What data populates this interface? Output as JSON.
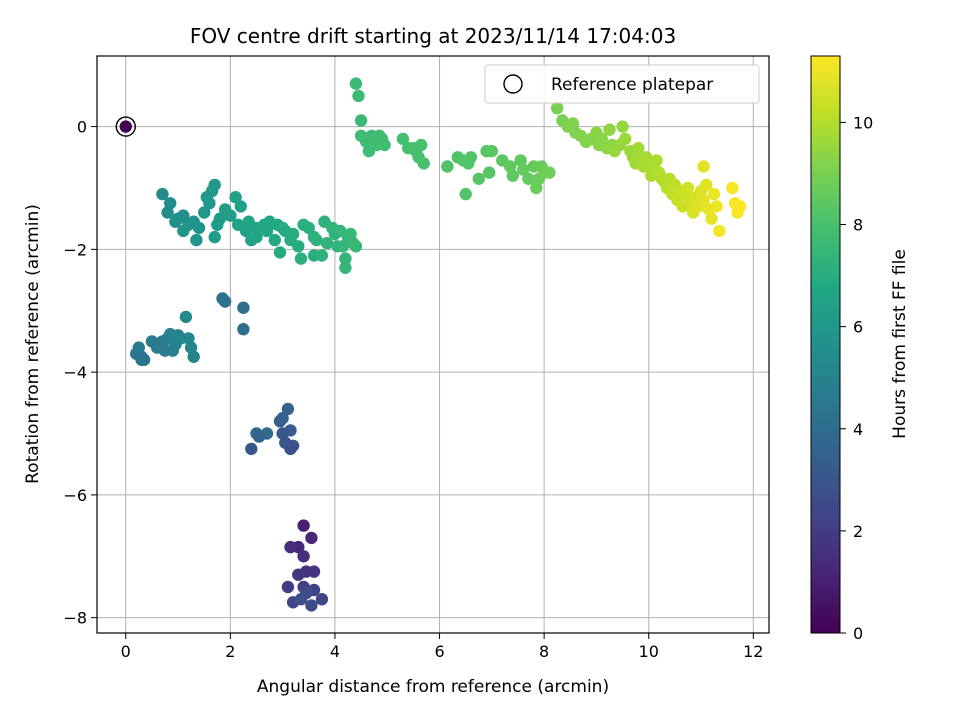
{
  "chart_data": {
    "type": "scatter",
    "title": "FOV centre drift starting at 2023/11/14 17:04:03",
    "xlabel": "Angular distance from reference (arcmin)",
    "ylabel": "Rotation from reference (arcmin)",
    "xlim": [
      -0.55,
      12.3
    ],
    "ylim": [
      -8.25,
      1.15
    ],
    "xticks": [
      0,
      2,
      4,
      6,
      8,
      10,
      12
    ],
    "yticks": [
      -8,
      -6,
      -4,
      -2,
      0
    ],
    "grid": true,
    "legend": {
      "position": "top-right",
      "entries": [
        "Reference platepar"
      ]
    },
    "colorbar": {
      "label": "Hours from first FF file",
      "range": [
        0,
        11.3
      ],
      "ticks": [
        0,
        2,
        4,
        6,
        8,
        10
      ],
      "colormap": "viridis"
    },
    "reference": {
      "x": 0,
      "y": 0,
      "h": 0
    },
    "series": [
      {
        "points": [
          [
            3.4,
            -6.5,
            1.0
          ],
          [
            3.3,
            -6.85,
            1.2
          ],
          [
            3.55,
            -6.7,
            1.3
          ],
          [
            3.15,
            -6.85,
            1.4
          ],
          [
            3.4,
            -7.0,
            1.5
          ],
          [
            3.45,
            -7.25,
            1.6
          ],
          [
            3.6,
            -7.25,
            1.7
          ],
          [
            3.3,
            -7.3,
            1.8
          ],
          [
            3.1,
            -7.5,
            2.0
          ],
          [
            3.4,
            -7.5,
            2.1
          ],
          [
            3.6,
            -7.55,
            2.2
          ],
          [
            3.75,
            -7.7,
            2.3
          ],
          [
            3.2,
            -7.75,
            2.4
          ],
          [
            3.55,
            -7.8,
            2.5
          ],
          [
            3.45,
            -7.6,
            2.6
          ],
          [
            3.35,
            -7.7,
            2.7
          ]
        ]
      },
      {
        "points": [
          [
            3.1,
            -4.6,
            3.6
          ],
          [
            3.0,
            -4.75,
            3.5
          ],
          [
            2.95,
            -4.8,
            3.4
          ],
          [
            3.15,
            -4.95,
            3.3
          ],
          [
            3.0,
            -5.0,
            3.2
          ],
          [
            2.7,
            -5.0,
            3.9
          ],
          [
            2.5,
            -5.0,
            3.8
          ],
          [
            2.55,
            -5.05,
            3.7
          ],
          [
            2.4,
            -5.25,
            3.1
          ],
          [
            3.05,
            -5.15,
            3.0
          ],
          [
            3.15,
            -5.25,
            2.9
          ],
          [
            3.2,
            -5.2,
            2.8
          ]
        ]
      },
      {
        "points": [
          [
            0.2,
            -3.7,
            4.3
          ],
          [
            0.3,
            -3.75,
            4.4
          ],
          [
            0.35,
            -3.8,
            4.5
          ],
          [
            0.25,
            -3.6,
            4.6
          ],
          [
            0.5,
            -3.5,
            4.7
          ],
          [
            0.7,
            -3.55,
            4.8
          ],
          [
            0.8,
            -3.45,
            4.9
          ],
          [
            0.85,
            -3.38,
            5.0
          ],
          [
            0.95,
            -3.55,
            5.1
          ],
          [
            1.05,
            -3.45,
            5.2
          ],
          [
            1.15,
            -3.1,
            5.3
          ],
          [
            1.2,
            -3.45,
            5.2
          ],
          [
            1.25,
            -3.6,
            5.1
          ],
          [
            1.3,
            -3.75,
            5.0
          ],
          [
            0.9,
            -3.65,
            4.9
          ],
          [
            0.75,
            -3.65,
            4.8
          ],
          [
            0.6,
            -3.6,
            4.7
          ],
          [
            0.7,
            -3.5,
            4.7
          ],
          [
            1.0,
            -3.4,
            5.0
          ],
          [
            0.3,
            -3.8,
            4.4
          ]
        ]
      },
      {
        "points": [
          [
            1.85,
            -2.8,
            4.2
          ],
          [
            1.9,
            -2.85,
            4.2
          ],
          [
            2.25,
            -2.95,
            4.1
          ],
          [
            2.25,
            -3.3,
            4.1
          ]
        ]
      },
      {
        "points": [
          [
            0.7,
            -1.1,
            5.4
          ],
          [
            0.85,
            -1.25,
            5.5
          ],
          [
            0.8,
            -1.4,
            5.5
          ],
          [
            1.0,
            -1.5,
            5.6
          ],
          [
            1.1,
            -1.45,
            5.6
          ],
          [
            0.95,
            -1.55,
            5.6
          ],
          [
            1.2,
            -1.6,
            5.7
          ],
          [
            1.3,
            -1.55,
            5.7
          ],
          [
            1.1,
            -1.7,
            5.8
          ],
          [
            1.4,
            -1.65,
            5.8
          ],
          [
            1.35,
            -1.85,
            5.8
          ],
          [
            1.5,
            -1.4,
            5.9
          ],
          [
            1.6,
            -1.25,
            5.9
          ],
          [
            1.55,
            -1.15,
            6.0
          ],
          [
            1.7,
            -0.95,
            6.0
          ],
          [
            1.65,
            -1.05,
            6.1
          ],
          [
            1.8,
            -1.5,
            6.1
          ],
          [
            1.75,
            -1.6,
            6.2
          ],
          [
            1.7,
            -1.8,
            6.2
          ],
          [
            1.9,
            -1.35,
            6.3
          ],
          [
            2.0,
            -1.45,
            6.3
          ],
          [
            2.1,
            -1.15,
            6.4
          ],
          [
            2.2,
            -1.3,
            6.4
          ],
          [
            2.15,
            -1.6,
            6.5
          ],
          [
            2.3,
            -1.7,
            6.5
          ],
          [
            2.4,
            -1.85,
            6.5
          ],
          [
            2.35,
            -1.55,
            6.6
          ],
          [
            2.5,
            -1.65,
            6.6
          ],
          [
            2.65,
            -1.6,
            6.7
          ],
          [
            2.75,
            -1.55,
            6.7
          ],
          [
            2.9,
            -1.6,
            6.8
          ],
          [
            2.85,
            -1.85,
            6.8
          ],
          [
            3.0,
            -1.65,
            6.9
          ],
          [
            3.05,
            -1.7,
            6.9
          ],
          [
            2.95,
            -2.05,
            6.9
          ],
          [
            3.15,
            -1.85,
            7.0
          ],
          [
            3.2,
            -1.75,
            7.0
          ],
          [
            3.3,
            -1.95,
            7.0
          ],
          [
            3.35,
            -2.15,
            7.1
          ],
          [
            3.5,
            -1.65,
            7.1
          ],
          [
            3.6,
            -2.1,
            7.1
          ],
          [
            3.65,
            -1.85,
            7.2
          ],
          [
            3.75,
            -2.1,
            7.2
          ],
          [
            3.8,
            -1.55,
            7.2
          ],
          [
            3.85,
            -1.9,
            7.3
          ],
          [
            3.95,
            -1.65,
            7.3
          ],
          [
            4.0,
            -1.75,
            7.3
          ],
          [
            4.05,
            -1.95,
            7.3
          ],
          [
            4.1,
            -1.7,
            7.4
          ],
          [
            4.15,
            -1.95,
            7.4
          ],
          [
            4.2,
            -2.15,
            7.4
          ],
          [
            4.25,
            -1.8,
            7.4
          ],
          [
            4.3,
            -1.75,
            7.5
          ],
          [
            4.35,
            -1.9,
            7.5
          ],
          [
            4.4,
            -1.95,
            7.5
          ],
          [
            4.2,
            -2.3,
            7.4
          ],
          [
            3.4,
            -1.6,
            7.1
          ],
          [
            3.6,
            -1.8,
            7.2
          ],
          [
            2.5,
            -1.8,
            6.6
          ],
          [
            2.7,
            -1.7,
            6.7
          ]
        ]
      },
      {
        "points": [
          [
            4.4,
            0.7,
            7.6
          ],
          [
            4.45,
            0.5,
            7.6
          ],
          [
            4.5,
            0.1,
            7.6
          ],
          [
            4.5,
            -0.15,
            7.7
          ],
          [
            4.6,
            -0.25,
            7.7
          ],
          [
            4.7,
            -0.15,
            7.7
          ],
          [
            4.65,
            -0.4,
            7.7
          ],
          [
            4.8,
            -0.3,
            7.8
          ],
          [
            4.9,
            -0.2,
            7.8
          ],
          [
            4.85,
            -0.15,
            7.8
          ],
          [
            4.95,
            -0.3,
            7.8
          ],
          [
            5.3,
            -0.2,
            7.9
          ],
          [
            5.4,
            -0.35,
            7.9
          ],
          [
            5.55,
            -0.4,
            7.9
          ],
          [
            5.5,
            -0.35,
            8.0
          ],
          [
            5.6,
            -0.5,
            8.0
          ],
          [
            5.7,
            -0.6,
            8.0
          ],
          [
            5.65,
            -0.3,
            8.0
          ],
          [
            6.15,
            -0.65,
            8.1
          ],
          [
            6.35,
            -0.5,
            8.1
          ],
          [
            6.45,
            -0.55,
            8.2
          ],
          [
            6.5,
            -1.1,
            8.2
          ],
          [
            6.55,
            -0.6,
            8.2
          ],
          [
            6.6,
            -0.5,
            8.2
          ],
          [
            6.75,
            -0.85,
            8.3
          ],
          [
            6.9,
            -0.4,
            8.3
          ],
          [
            6.95,
            -0.75,
            8.3
          ],
          [
            7.0,
            -0.4,
            8.4
          ],
          [
            7.2,
            -0.55,
            8.4
          ],
          [
            7.35,
            -0.65,
            8.5
          ],
          [
            7.4,
            -0.8,
            8.5
          ],
          [
            7.55,
            -0.55,
            8.5
          ],
          [
            7.6,
            -0.7,
            8.6
          ],
          [
            7.7,
            -0.85,
            8.6
          ],
          [
            7.8,
            -0.65,
            8.6
          ],
          [
            7.85,
            -1.0,
            8.7
          ],
          [
            7.9,
            -0.85,
            8.7
          ],
          [
            7.95,
            -0.65,
            8.7
          ],
          [
            8.0,
            -0.75,
            8.8
          ],
          [
            8.1,
            -0.75,
            8.8
          ]
        ]
      },
      {
        "points": [
          [
            8.25,
            0.3,
            9.0
          ],
          [
            8.35,
            0.1,
            9.0
          ],
          [
            8.45,
            0.0,
            9.1
          ],
          [
            8.55,
            0.05,
            9.1
          ],
          [
            8.6,
            -0.1,
            9.1
          ],
          [
            8.7,
            -0.15,
            9.2
          ],
          [
            8.8,
            -0.25,
            9.2
          ],
          [
            8.9,
            -0.2,
            9.2
          ],
          [
            9.0,
            -0.1,
            9.3
          ],
          [
            9.05,
            -0.3,
            9.3
          ],
          [
            9.1,
            -0.2,
            9.3
          ],
          [
            9.2,
            -0.35,
            9.4
          ],
          [
            9.25,
            -0.05,
            9.4
          ],
          [
            9.3,
            -0.3,
            9.4
          ],
          [
            9.35,
            -0.4,
            9.5
          ],
          [
            9.45,
            -0.3,
            9.5
          ],
          [
            9.5,
            -0.0,
            9.5
          ],
          [
            9.55,
            -0.2,
            9.6
          ],
          [
            9.65,
            -0.4,
            9.6
          ],
          [
            9.7,
            -0.5,
            9.6
          ],
          [
            9.75,
            -0.6,
            9.7
          ],
          [
            9.8,
            -0.45,
            9.7
          ],
          [
            9.85,
            -0.55,
            9.7
          ],
          [
            9.9,
            -0.65,
            9.8
          ],
          [
            9.95,
            -0.5,
            9.8
          ],
          [
            10.0,
            -0.6,
            9.8
          ],
          [
            10.05,
            -0.8,
            9.9
          ],
          [
            10.1,
            -0.7,
            9.9
          ],
          [
            10.15,
            -0.55,
            9.9
          ],
          [
            10.2,
            -0.75,
            10.0
          ],
          [
            10.25,
            -0.85,
            10.0
          ],
          [
            10.3,
            -0.9,
            10.0
          ],
          [
            10.35,
            -1.0,
            10.1
          ],
          [
            10.4,
            -0.85,
            10.1
          ],
          [
            10.45,
            -1.1,
            10.2
          ],
          [
            10.5,
            -0.95,
            10.2
          ],
          [
            10.55,
            -1.2,
            10.3
          ],
          [
            10.6,
            -1.05,
            10.3
          ],
          [
            10.65,
            -1.3,
            10.4
          ],
          [
            10.7,
            -1.1,
            10.4
          ],
          [
            10.75,
            -1.0,
            10.5
          ],
          [
            10.8,
            -1.25,
            10.5
          ],
          [
            10.85,
            -1.4,
            10.6
          ],
          [
            10.9,
            -1.15,
            10.6
          ],
          [
            10.95,
            -1.3,
            10.7
          ],
          [
            11.0,
            -1.05,
            10.7
          ],
          [
            11.05,
            -1.2,
            10.8
          ],
          [
            11.1,
            -0.95,
            10.8
          ],
          [
            11.15,
            -1.35,
            10.9
          ],
          [
            11.2,
            -1.5,
            10.9
          ],
          [
            11.25,
            -1.1,
            11.0
          ],
          [
            11.3,
            -1.3,
            11.0
          ],
          [
            11.35,
            -1.7,
            11.1
          ],
          [
            11.6,
            -1.0,
            11.2
          ],
          [
            11.65,
            -1.25,
            11.2
          ],
          [
            11.7,
            -1.4,
            11.2
          ],
          [
            11.75,
            -1.3,
            11.3
          ],
          [
            11.05,
            -0.65,
            10.8
          ],
          [
            10.1,
            -0.6,
            9.9
          ],
          [
            9.8,
            -0.35,
            9.7
          ]
        ]
      }
    ]
  }
}
